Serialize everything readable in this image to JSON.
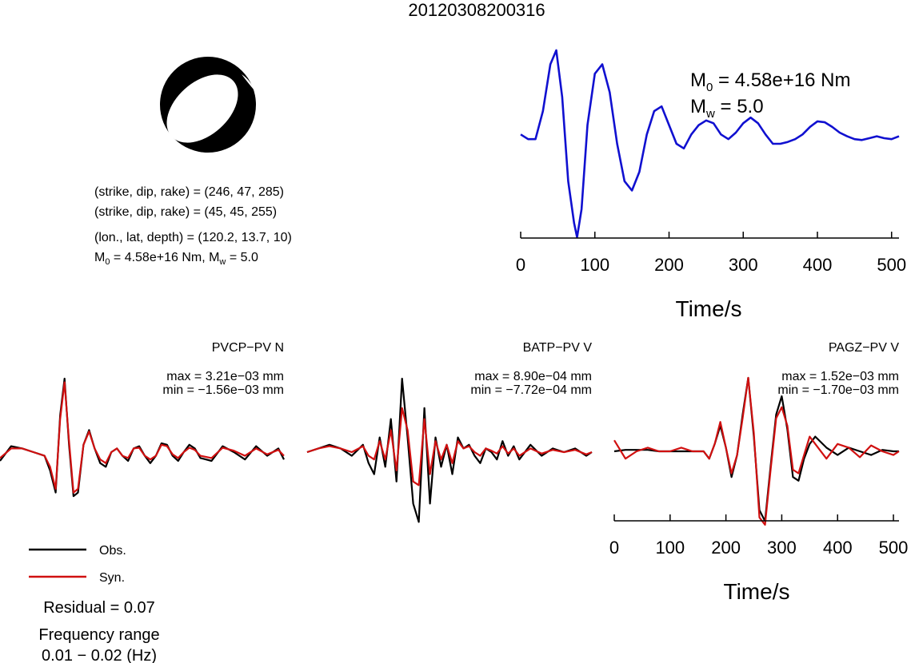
{
  "event_id": "20120308200316",
  "mechanism": {
    "line1": "(strike, dip, rake) = (246, 47, 285)",
    "line2": "(strike, dip, rake) = (45, 45, 255)",
    "line3": "(lon., lat, depth) = (120.2, 13.7, 10)",
    "m0_label": "M0 = 4.58e+16 Nm, Mw = 5.0",
    "m0_main": "M",
    "m0_sub": "0",
    "m0_rest": " = 4.58e+16 Nm, M",
    "mw_sub": "w",
    "mw_rest": " = 5.0"
  },
  "stf": {
    "m0_main": "M",
    "m0_sub": "0",
    "m0_rest": " = 4.58e+16 Nm",
    "mw_main": "M",
    "mw_sub": "w",
    "mw_rest": " = 5.0",
    "color": "#1010d0"
  },
  "legend": {
    "obs_label": "Obs.",
    "syn_label": "Syn.",
    "obs_color": "#000000",
    "syn_color": "#d01010",
    "residual": "Residual = 0.07",
    "freq_label": "Frequency range",
    "freq_value": "0.01 − 0.02 (Hz)"
  },
  "chart_data": [
    {
      "type": "line",
      "name": "source-time-function",
      "xlabel": "Time/s",
      "xlim": [
        0,
        510
      ],
      "xticks": [
        "0",
        "100",
        "200",
        "300",
        "400",
        "500"
      ],
      "x": [
        0,
        10,
        20,
        30,
        40,
        48,
        56,
        64,
        72,
        76,
        82,
        90,
        100,
        110,
        120,
        130,
        140,
        150,
        160,
        170,
        180,
        190,
        200,
        210,
        220,
        230,
        240,
        250,
        260,
        270,
        280,
        290,
        300,
        310,
        320,
        330,
        340,
        350,
        360,
        370,
        380,
        390,
        400,
        410,
        420,
        430,
        440,
        450,
        460,
        470,
        480,
        490,
        500,
        510
      ],
      "y": [
        0.1,
        0.05,
        0.05,
        0.35,
        0.85,
        1.0,
        0.5,
        -0.4,
        -0.85,
        -1.0,
        -0.7,
        0.2,
        0.75,
        0.85,
        0.55,
        0.0,
        -0.4,
        -0.5,
        -0.3,
        0.1,
        0.35,
        0.4,
        0.2,
        0.0,
        -0.05,
        0.1,
        0.2,
        0.25,
        0.22,
        0.1,
        0.05,
        0.12,
        0.22,
        0.28,
        0.22,
        0.1,
        0.0,
        0.0,
        0.02,
        0.05,
        0.1,
        0.18,
        0.24,
        0.23,
        0.18,
        0.12,
        0.08,
        0.05,
        0.04,
        0.06,
        0.08,
        0.06,
        0.05,
        0.08
      ]
    },
    {
      "type": "line",
      "station": "PVCP−PV N",
      "max_label": "max = 3.21e−03 mm",
      "min_label": "min = −1.56e−03 mm",
      "x": [
        0,
        20,
        40,
        60,
        80,
        90,
        100,
        108,
        116,
        124,
        132,
        140,
        150,
        160,
        170,
        180,
        190,
        200,
        210,
        220,
        230,
        240,
        250,
        260,
        270,
        280,
        290,
        300,
        310,
        320,
        330,
        340,
        350,
        360,
        380,
        400,
        420,
        440,
        460,
        480,
        500,
        510
      ],
      "series": [
        {
          "name": "Obs.",
          "values": [
            -0.12,
            0.08,
            0.05,
            0.0,
            -0.05,
            -0.25,
            -0.55,
            0.5,
            1.0,
            0.1,
            -0.6,
            -0.55,
            0.1,
            0.3,
            0.05,
            -0.15,
            -0.2,
            0.0,
            0.05,
            -0.05,
            -0.12,
            0.05,
            0.08,
            -0.05,
            -0.15,
            -0.05,
            0.12,
            0.1,
            -0.05,
            -0.12,
            0.0,
            0.1,
            0.05,
            -0.08,
            -0.12,
            0.08,
            0.0,
            -0.1,
            0.08,
            -0.05,
            0.05,
            -0.1
          ]
        },
        {
          "name": "Syn.",
          "values": [
            -0.08,
            0.05,
            0.05,
            0.0,
            -0.05,
            -0.2,
            -0.5,
            0.45,
            0.95,
            0.15,
            -0.55,
            -0.5,
            0.1,
            0.28,
            0.05,
            -0.1,
            -0.15,
            0.0,
            0.05,
            -0.05,
            -0.08,
            0.05,
            0.06,
            -0.05,
            -0.1,
            -0.05,
            0.1,
            0.08,
            -0.03,
            -0.08,
            0.0,
            0.06,
            0.03,
            -0.05,
            -0.08,
            0.06,
            0.02,
            -0.05,
            0.05,
            -0.03,
            0.03,
            -0.05
          ]
        }
      ]
    },
    {
      "type": "line",
      "station": "BATP−PV V",
      "max_label": "max = 8.90e−04 mm",
      "min_label": "min = −7.72e−04 mm",
      "x": [
        0,
        20,
        40,
        60,
        80,
        100,
        110,
        120,
        130,
        140,
        150,
        160,
        170,
        180,
        190,
        200,
        210,
        220,
        230,
        240,
        250,
        260,
        270,
        280,
        290,
        300,
        310,
        320,
        330,
        340,
        350,
        360,
        370,
        380,
        400,
        420,
        440,
        460,
        480,
        500,
        510
      ],
      "series": [
        {
          "name": "Obs.",
          "values": [
            0.0,
            0.05,
            0.1,
            0.05,
            -0.05,
            0.1,
            -0.15,
            -0.3,
            0.2,
            -0.2,
            0.45,
            -0.4,
            1.0,
            0.2,
            -0.7,
            -0.95,
            0.6,
            -0.7,
            0.2,
            -0.2,
            0.1,
            -0.3,
            0.2,
            0.05,
            0.1,
            -0.05,
            -0.15,
            0.05,
            0.0,
            -0.1,
            0.15,
            -0.05,
            0.08,
            -0.1,
            0.1,
            -0.05,
            0.05,
            0.0,
            0.05,
            -0.05,
            0.0
          ]
        },
        {
          "name": "Syn.",
          "values": [
            0.0,
            0.05,
            0.08,
            0.05,
            0.0,
            0.08,
            -0.05,
            -0.1,
            0.15,
            -0.1,
            0.3,
            -0.25,
            0.6,
            0.3,
            -0.4,
            -0.45,
            0.45,
            -0.3,
            0.15,
            -0.1,
            0.1,
            -0.15,
            0.15,
            0.05,
            0.08,
            0.0,
            -0.05,
            0.05,
            0.02,
            -0.02,
            0.08,
            -0.02,
            0.05,
            -0.05,
            0.05,
            -0.02,
            0.03,
            0.0,
            0.03,
            -0.03,
            0.0
          ]
        }
      ]
    },
    {
      "type": "line",
      "station": "PAGZ−PV V",
      "max_label": "max = 1.52e−03 mm",
      "min_label": "min = −1.70e−03 mm",
      "xlabel": "Time/s",
      "xlim": [
        0,
        510
      ],
      "xticks": [
        "0",
        "100",
        "200",
        "300",
        "400",
        "500"
      ],
      "x": [
        0,
        20,
        40,
        60,
        80,
        100,
        120,
        140,
        160,
        170,
        180,
        190,
        200,
        210,
        220,
        230,
        240,
        250,
        260,
        270,
        280,
        290,
        300,
        310,
        320,
        330,
        340,
        350,
        360,
        380,
        400,
        420,
        440,
        460,
        480,
        500,
        510
      ],
      "series": [
        {
          "name": "Obs.",
          "values": [
            0.0,
            0.02,
            0.02,
            0.02,
            0.0,
            0.0,
            0.0,
            0.0,
            0.0,
            -0.1,
            0.1,
            0.35,
            0.05,
            -0.35,
            -0.05,
            0.5,
            1.0,
            0.2,
            -0.8,
            -0.95,
            -0.2,
            0.5,
            0.75,
            0.3,
            -0.35,
            -0.4,
            -0.1,
            0.1,
            0.2,
            0.05,
            -0.05,
            0.05,
            0.0,
            -0.05,
            0.02,
            0.0,
            0.0
          ]
        },
        {
          "name": "Syn.",
          "values": [
            0.15,
            -0.1,
            0.0,
            0.05,
            0.0,
            0.0,
            0.05,
            0.0,
            0.0,
            -0.1,
            0.1,
            0.4,
            0.05,
            -0.3,
            -0.05,
            0.45,
            1.0,
            0.25,
            -0.9,
            -1.0,
            -0.25,
            0.45,
            0.6,
            0.35,
            -0.25,
            -0.3,
            -0.05,
            0.2,
            0.1,
            -0.1,
            0.1,
            0.05,
            -0.08,
            0.08,
            0.0,
            -0.05,
            0.0
          ]
        }
      ]
    }
  ]
}
